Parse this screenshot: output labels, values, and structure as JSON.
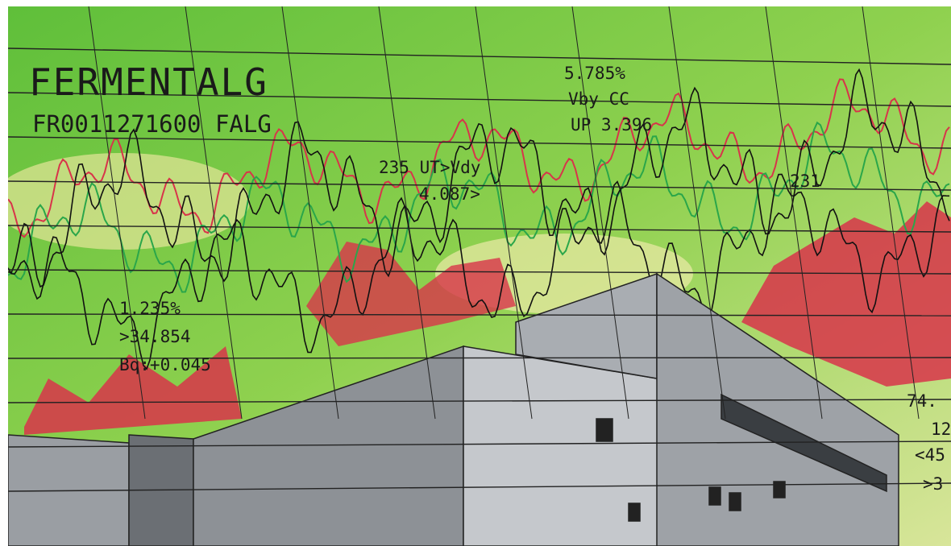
{
  "ticker": {
    "name": "FERMENTALG",
    "code": "FR0011271600 FALG"
  },
  "annotations": [
    "5.785%",
    "Vby CC",
    "UP 3.396",
    "235 UT>Vdy",
    "4.087>",
    "231",
    "1.235%",
    ">34.854",
    "Bq:+0.045",
    "74.",
    "12",
    "<45",
    ">3"
  ]
}
